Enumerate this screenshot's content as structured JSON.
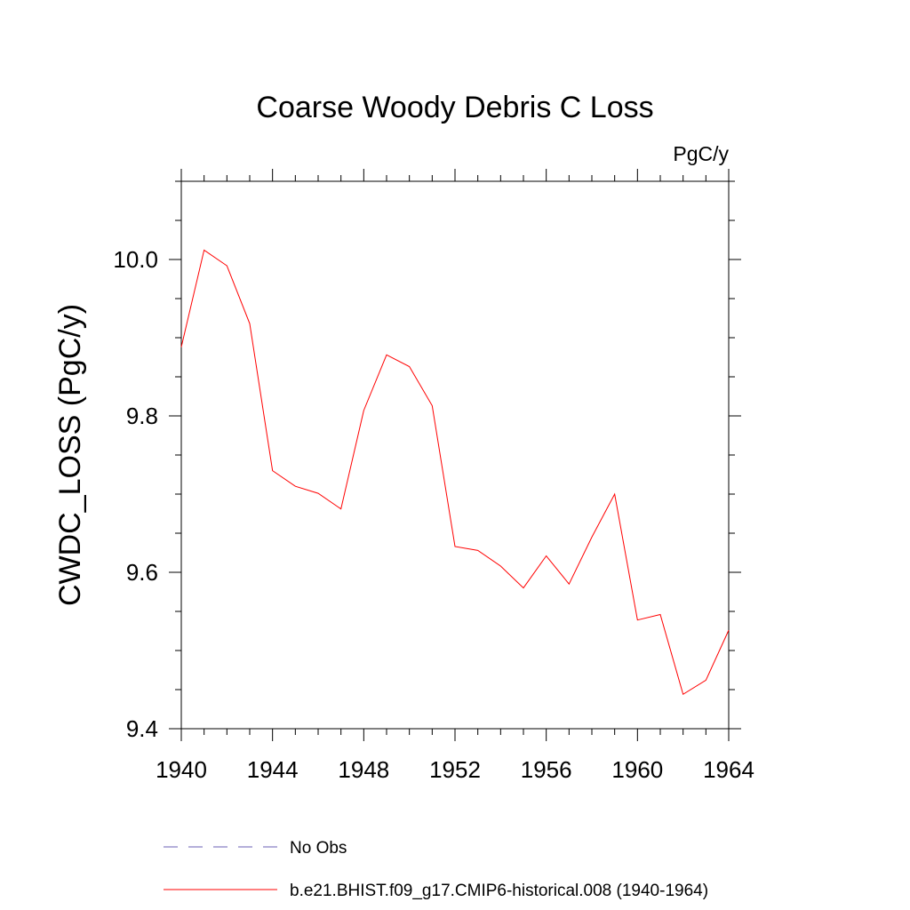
{
  "chart_data": {
    "type": "line",
    "title": "Coarse Woody Debris C Loss",
    "units_label": "PgC/y",
    "ylabel": "CWDC_LOSS  (PgC/y)",
    "xlabel": "",
    "xlim": [
      1940,
      1964
    ],
    "ylim": [
      9.4,
      10.1
    ],
    "xticks": [
      1940,
      1944,
      1948,
      1952,
      1956,
      1960,
      1964
    ],
    "xtick_labels": [
      "1940",
      "1944",
      "1948",
      "1952",
      "1956",
      "1960",
      "1964"
    ],
    "yticks": [
      9.4,
      9.6,
      9.8,
      10.0
    ],
    "ytick_labels": [
      "9.4",
      "9.6",
      "9.8",
      "10.0"
    ],
    "grid": false,
    "legend_position": "bottom",
    "series": [
      {
        "name": "b.e21.BHIST.f09_g17.CMIP6-historical.008 (1940-1964)",
        "color": "#ff0000",
        "style": "solid",
        "x": [
          1940,
          1941,
          1942,
          1943,
          1944,
          1945,
          1946,
          1947,
          1948,
          1949,
          1950,
          1951,
          1952,
          1953,
          1954,
          1955,
          1956,
          1957,
          1958,
          1959,
          1960,
          1961,
          1962,
          1963,
          1964
        ],
        "values": [
          9.888,
          10.012,
          9.992,
          9.918,
          9.73,
          9.71,
          9.701,
          9.681,
          9.807,
          9.878,
          9.863,
          9.813,
          9.633,
          9.628,
          9.608,
          9.58,
          9.621,
          9.585,
          9.645,
          9.7,
          9.539,
          9.546,
          9.444,
          9.462,
          9.526
        ]
      }
    ],
    "legend": [
      {
        "label": "No Obs",
        "color": "#6b5fb5",
        "style": "dashed"
      },
      {
        "label": "b.e21.BHIST.f09_g17.CMIP6-historical.008 (1940-1964)",
        "color": "#ff0000",
        "style": "solid"
      }
    ]
  }
}
